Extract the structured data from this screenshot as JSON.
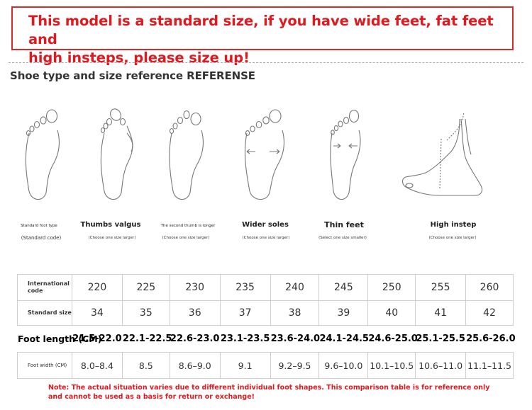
{
  "banner": {
    "line1": "This model is a standard size, if you have wide feet, fat feet and",
    "line2": "high insteps, please size up!"
  },
  "section_title": "Shoe type and size reference REFERENSE",
  "feet": [
    {
      "label": "Standard foot type",
      "sub": "(Standard code)"
    },
    {
      "label": "Thumbs valgus",
      "sub": "(Choose one size larger)"
    },
    {
      "label": "The second thumb is longer",
      "sub": "(Choose one size larger)"
    },
    {
      "label": "Wider soles",
      "sub": "(Choose one size larger)"
    },
    {
      "label": "Thin feet",
      "sub": "(Select one size smaller)"
    },
    {
      "label": "High instep",
      "sub": "(Choose one size larger)"
    }
  ],
  "table": {
    "rows": [
      {
        "header": "International code",
        "values": [
          "220",
          "225",
          "230",
          "235",
          "240",
          "245",
          "250",
          "255",
          "260"
        ]
      },
      {
        "header": "Standard size",
        "values": [
          "34",
          "35",
          "36",
          "37",
          "38",
          "39",
          "40",
          "41",
          "42"
        ]
      },
      {
        "header": "Foot length (CM)",
        "values": [
          "21.5-22.0",
          "22.1-22.5",
          "22.6-23.0",
          "23.1-23.5",
          "23.6-24.0",
          "24.1-24.5",
          "24.6-25.0",
          "25.1-25.5",
          "25.6-26.0"
        ]
      },
      {
        "header": "Foot width (CM)",
        "values": [
          "8.0–8.4",
          "8.5",
          "8.6–9.0",
          "9.1",
          "9.2–9.5",
          "9.6–10.0",
          "10.1–10.5",
          "10.6–11.0",
          "11.1–11.5"
        ]
      }
    ]
  },
  "note": {
    "line1": "Note: The actual situation varies due to different individual foot shapes. This comparison table is for reference only",
    "line2": "and cannot be used as a basis for return or exchange!"
  }
}
